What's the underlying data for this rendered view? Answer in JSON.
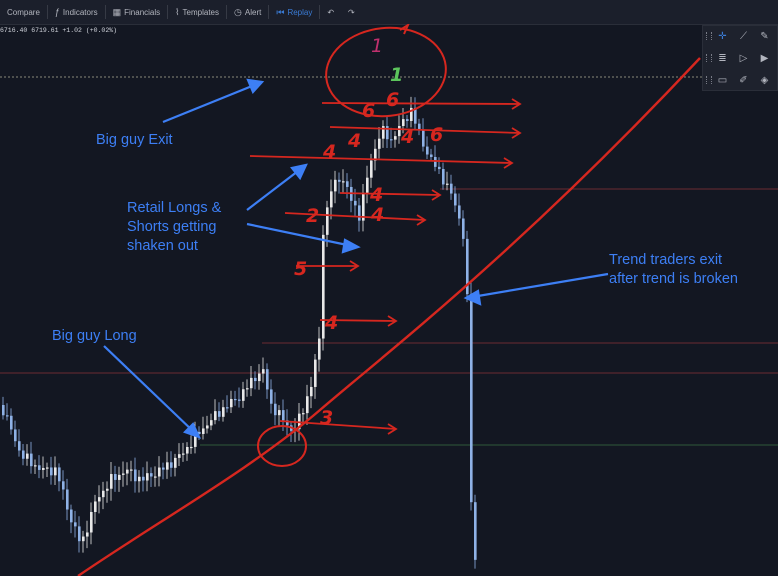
{
  "toolbar": {
    "compare": "Compare",
    "indicators": "Indicators",
    "financials": "Financials",
    "templates": "Templates",
    "alert": "Alert",
    "replay": "Replay"
  },
  "legend": {
    "price_text": "6716.40  6719.61 +1.02 (+0.02%)"
  },
  "annotations": {
    "big_guy_exit": "Big guy Exit",
    "retail_line1": "Retail Longs &",
    "retail_line2": "Shorts getting",
    "retail_line3": "shaken out",
    "trend_line1": "Trend traders exit",
    "trend_line2": "after trend is broken",
    "big_guy_long": "Big guy Long"
  },
  "hand_numbers": {
    "n1_top": "1",
    "n1_green": "1",
    "n6a": "6",
    "n6b": "6",
    "n6c": "6",
    "n4a": "4",
    "n4b": "4",
    "n4c": "4",
    "n4d": "4",
    "n4e": "4",
    "n2": "2",
    "n5": "5",
    "n4f": "4",
    "n3": "3"
  },
  "colors": {
    "background": "#131722",
    "annotation_blue": "#3d7ff5",
    "ink_red": "#d6271f",
    "up_candle": "#e8e8e8",
    "down_candle": "#8fb2e6",
    "green_ink": "#5cc45c",
    "magenta_ink": "#c0306e"
  },
  "drawing_tools": [
    "crosshair-icon",
    "trend-line-icon",
    "brush-icon",
    "fib-icon",
    "arrow-icon",
    "play-icon",
    "rectangle-icon",
    "pen-icon",
    "fill-icon"
  ]
}
